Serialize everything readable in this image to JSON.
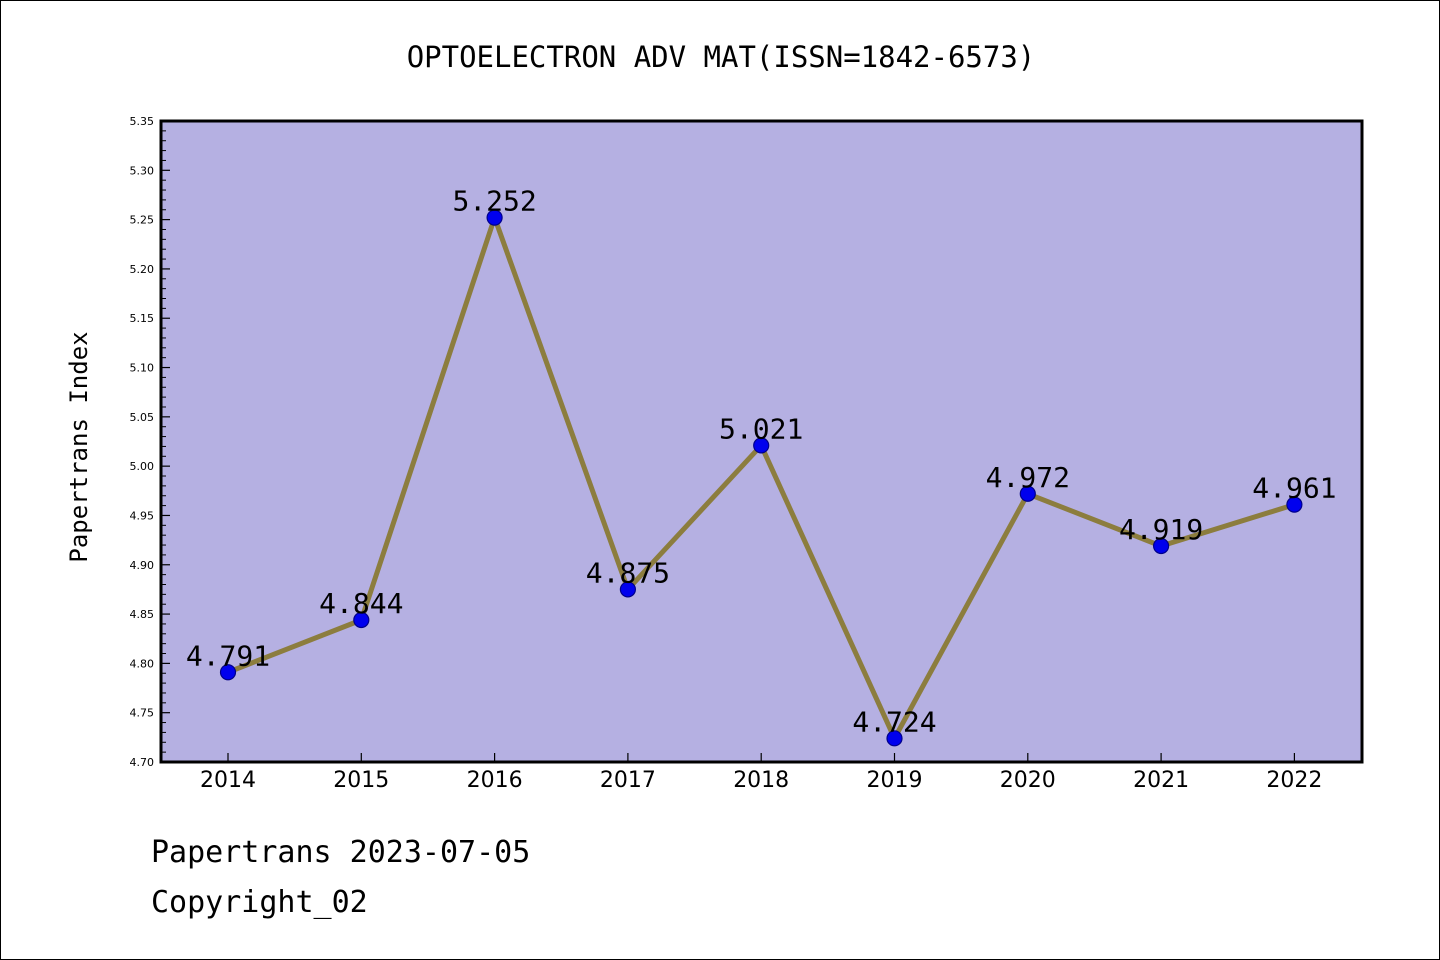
{
  "footer": {
    "date_line": "Papertrans 2023-07-05",
    "copyright": "Copyright_02"
  },
  "chart_data": {
    "type": "line",
    "title": "OPTOELECTRON ADV MAT(ISSN=1842-6573)",
    "xlabel": "",
    "ylabel": "Papertrans Index",
    "categories": [
      "2014",
      "2015",
      "2016",
      "2017",
      "2018",
      "2019",
      "2020",
      "2021",
      "2022"
    ],
    "values": [
      4.791,
      4.844,
      5.252,
      4.875,
      5.021,
      4.724,
      4.972,
      4.919,
      4.961
    ],
    "data_labels": [
      "4.791",
      "4.844",
      "5.252",
      "4.875",
      "5.021",
      "4.724",
      "4.972",
      "4.919",
      "4.961"
    ],
    "ylim": [
      4.7,
      5.35
    ],
    "yticks": [
      "4.70",
      "4.75",
      "4.80",
      "4.85",
      "4.90",
      "4.95",
      "5.00",
      "5.05",
      "5.10",
      "5.15",
      "5.20",
      "5.25",
      "5.30",
      "5.35"
    ],
    "grid": false,
    "legend": "none",
    "colors": {
      "plot_background": "#b5b0e2",
      "line": "#8c7d3e",
      "marker_fill": "#0000ee",
      "marker_edge": "#00008b",
      "axis": "#000000",
      "text": "#000000"
    }
  }
}
